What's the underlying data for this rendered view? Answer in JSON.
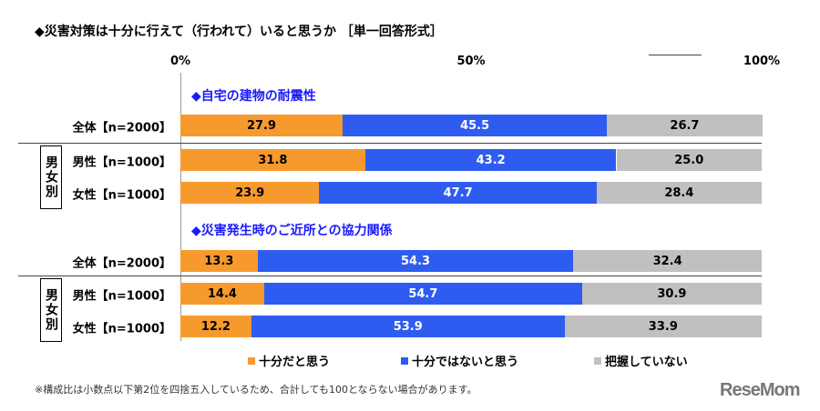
{
  "chart_data": {
    "type": "bar",
    "stacked": true,
    "orientation": "horizontal",
    "title": "◆災害対策は十分に行えて（行われて）いると思うか ［単一回答形式］",
    "xlim": [
      0,
      100
    ],
    "ticks": [
      "0%",
      "50%",
      "100%"
    ],
    "sections": [
      {
        "title": "◆自宅の建物の耐震性",
        "group_label": "男女別",
        "rows": [
          {
            "label": "全体【n=2000】",
            "values": [
              27.9,
              45.5,
              26.7
            ]
          },
          {
            "label": "男性【n=1000】",
            "values": [
              31.8,
              43.2,
              25.0
            ]
          },
          {
            "label": "女性【n=1000】",
            "values": [
              23.9,
              47.7,
              28.4
            ]
          }
        ]
      },
      {
        "title": "◆災害発生時のご近所との協力関係",
        "group_label": "男女別",
        "rows": [
          {
            "label": "全体【n=2000】",
            "values": [
              13.3,
              54.3,
              32.4
            ]
          },
          {
            "label": "男性【n=1000】",
            "values": [
              14.4,
              54.7,
              30.9
            ]
          },
          {
            "label": "女性【n=1000】",
            "values": [
              12.2,
              53.9,
              33.9
            ]
          }
        ]
      }
    ],
    "series": [
      {
        "name": "十分だと思う",
        "color": "#f79a2e"
      },
      {
        "name": "十分ではないと思う",
        "color": "#2f5cf0"
      },
      {
        "name": "把握していない",
        "color": "#c0c0c0"
      }
    ],
    "legend": "bottom"
  },
  "note": "※構成比は小数点以下第2位を四捨五入しているため、合計しても100とならない場合があります。",
  "logo": "ReseMom"
}
